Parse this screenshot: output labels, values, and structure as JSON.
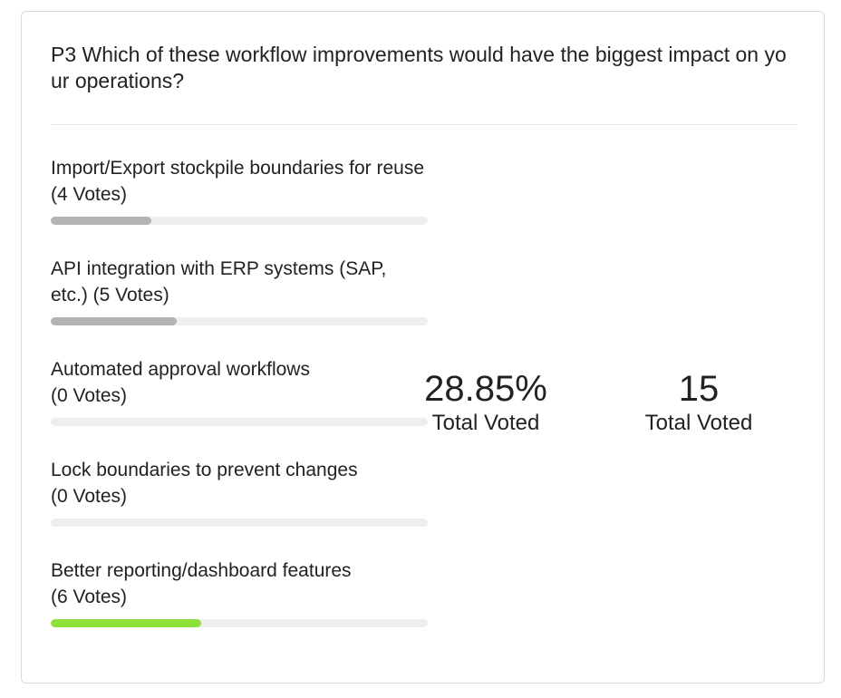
{
  "poll": {
    "question": "P3 Which of these workflow improvements would have the biggest impact on your operations?",
    "options": [
      {
        "label": "Import/Export stockpile boundaries for reuse  (4 Votes)",
        "votes": 4,
        "fill_fraction": 0.267,
        "color": "#b3b3b3"
      },
      {
        "label": "API integration with ERP systems (SAP, etc.)  (5 Votes)",
        "votes": 5,
        "fill_fraction": 0.333,
        "color": "#b3b3b3"
      },
      {
        "label": "Automated approval workflows\n (0 Votes)",
        "votes": 0,
        "fill_fraction": 0,
        "color": "#b3b3b3"
      },
      {
        "label": "Lock boundaries to prevent changes\n (0 Votes)",
        "votes": 0,
        "fill_fraction": 0,
        "color": "#b3b3b3"
      },
      {
        "label": "Better reporting/dashboard features\n (6 Votes)",
        "votes": 6,
        "fill_fraction": 0.4,
        "color": "#8ee03a"
      }
    ],
    "summary": {
      "percent_value": "28.85%",
      "percent_label": "Total Voted",
      "count_value": "15",
      "count_label": "Total Voted"
    }
  }
}
